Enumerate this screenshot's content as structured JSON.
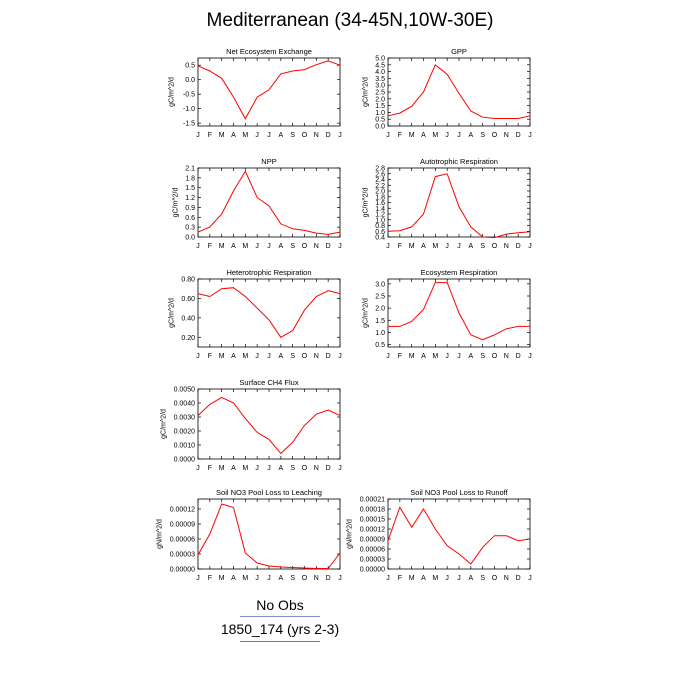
{
  "page": {
    "title": "Mediterranean (34-45N,10W-30E)"
  },
  "legend": {
    "items": [
      {
        "label": "No Obs",
        "color": "#7a8fd0"
      },
      {
        "label": "1850_174 (yrs 2-3)",
        "color": "#e05050"
      }
    ]
  },
  "colors": {
    "series": "#ff0000",
    "axis": "#000000"
  },
  "chart_data": [
    {
      "type": "line",
      "title": "Net Ecosystem Exchange",
      "ylabel": "gC/m^2/d",
      "xlabel": "",
      "categories": [
        "J",
        "F",
        "M",
        "A",
        "M",
        "J",
        "J",
        "A",
        "S",
        "O",
        "N",
        "D",
        "J"
      ],
      "ylim": [
        -1.6,
        0.75
      ],
      "yticks": [
        0.5,
        0.0,
        -0.5,
        -1.0,
        -1.5
      ],
      "yticklabels": [
        "0.5",
        "0.0",
        "-0.5",
        "-1.0",
        "-1.5"
      ],
      "series": [
        {
          "values": [
            0.48,
            0.3,
            0.05,
            -0.6,
            -1.35,
            -0.6,
            -0.35,
            0.2,
            0.3,
            0.35,
            0.52,
            0.65,
            0.5
          ]
        }
      ]
    },
    {
      "type": "line",
      "title": "GPP",
      "ylabel": "gC/m^2/d",
      "xlabel": "",
      "categories": [
        "J",
        "F",
        "M",
        "A",
        "M",
        "J",
        "J",
        "A",
        "S",
        "O",
        "N",
        "D",
        "J"
      ],
      "ylim": [
        0.0,
        5.0
      ],
      "yticks": [
        0.0,
        0.5,
        1.0,
        1.5,
        2.0,
        2.5,
        3.0,
        3.5,
        4.0,
        4.5,
        5.0
      ],
      "yticklabels": [
        "0.0",
        "0.5",
        "1.0",
        "1.5",
        "2.0",
        "2.5",
        "3.0",
        "3.5",
        "4.0",
        "4.5",
        "5.0"
      ],
      "series": [
        {
          "values": [
            0.75,
            0.95,
            1.45,
            2.5,
            4.5,
            3.8,
            2.4,
            1.1,
            0.65,
            0.55,
            0.55,
            0.55,
            0.75
          ]
        }
      ]
    },
    {
      "type": "line",
      "title": "NPP",
      "ylabel": "gC/m^2/d",
      "xlabel": "",
      "categories": [
        "J",
        "F",
        "M",
        "A",
        "M",
        "J",
        "J",
        "A",
        "S",
        "O",
        "N",
        "D",
        "J"
      ],
      "ylim": [
        0.0,
        2.1
      ],
      "yticks": [
        0.0,
        0.3,
        0.6,
        0.9,
        1.2,
        1.5,
        1.8,
        2.1
      ],
      "yticklabels": [
        "0.0",
        "0.3",
        "0.6",
        "0.9",
        "1.2",
        "1.5",
        "1.8",
        "2.1"
      ],
      "series": [
        {
          "values": [
            0.15,
            0.3,
            0.7,
            1.4,
            2.0,
            1.2,
            0.95,
            0.4,
            0.25,
            0.2,
            0.12,
            0.08,
            0.15
          ]
        }
      ]
    },
    {
      "type": "line",
      "title": "Autotrophic Respiration",
      "ylabel": "gC/m^2/d",
      "xlabel": "",
      "categories": [
        "J",
        "F",
        "M",
        "A",
        "M",
        "J",
        "J",
        "A",
        "S",
        "O",
        "N",
        "D",
        "J"
      ],
      "ylim": [
        0.4,
        2.8
      ],
      "yticks": [
        0.4,
        0.6,
        0.8,
        1.0,
        1.2,
        1.4,
        1.6,
        1.8,
        2.0,
        2.2,
        2.4,
        2.6,
        2.8
      ],
      "yticklabels": [
        "0.4",
        "0.6",
        "0.8",
        "1.0",
        "1.2",
        "1.4",
        "1.6",
        "1.8",
        "2.0",
        "2.2",
        "2.4",
        "2.6",
        "2.8"
      ],
      "series": [
        {
          "values": [
            0.6,
            0.62,
            0.75,
            1.2,
            2.5,
            2.6,
            1.45,
            0.75,
            0.4,
            0.38,
            0.5,
            0.55,
            0.58
          ]
        }
      ]
    },
    {
      "type": "line",
      "title": "Heterotrophic Respiration",
      "ylabel": "gC/m^2/d",
      "xlabel": "",
      "categories": [
        "J",
        "F",
        "M",
        "A",
        "M",
        "J",
        "J",
        "A",
        "S",
        "O",
        "N",
        "D",
        "J"
      ],
      "ylim": [
        0.1,
        0.8
      ],
      "yticks": [
        0.2,
        0.4,
        0.6,
        0.8
      ],
      "yticklabels": [
        "0.20",
        "0.40",
        "0.60",
        "0.80"
      ],
      "series": [
        {
          "values": [
            0.65,
            0.62,
            0.7,
            0.71,
            0.62,
            0.5,
            0.38,
            0.2,
            0.27,
            0.48,
            0.62,
            0.68,
            0.65
          ]
        }
      ]
    },
    {
      "type": "line",
      "title": "Ecosystem Respiration",
      "ylabel": "gC/m^2/d",
      "xlabel": "",
      "categories": [
        "J",
        "F",
        "M",
        "A",
        "M",
        "J",
        "J",
        "A",
        "S",
        "O",
        "N",
        "D",
        "J"
      ],
      "ylim": [
        0.4,
        3.2
      ],
      "yticks": [
        0.5,
        1.0,
        1.5,
        2.0,
        2.5,
        3.0
      ],
      "yticklabels": [
        "0.5",
        "1.0",
        "1.5",
        "2.0",
        "2.5",
        "3.0"
      ],
      "series": [
        {
          "values": [
            1.25,
            1.25,
            1.45,
            1.95,
            3.05,
            3.05,
            1.8,
            0.9,
            0.7,
            0.9,
            1.15,
            1.25,
            1.25
          ]
        }
      ]
    },
    {
      "type": "line",
      "title": "Surface CH4 Flux",
      "ylabel": "gC/m^2/d",
      "xlabel": "",
      "categories": [
        "J",
        "F",
        "M",
        "A",
        "M",
        "J",
        "J",
        "A",
        "S",
        "O",
        "N",
        "D",
        "J"
      ],
      "ylim": [
        0.0,
        0.005
      ],
      "yticks": [
        0.0,
        0.001,
        0.002,
        0.003,
        0.004,
        0.005
      ],
      "yticklabels": [
        "0.0000",
        "0.0010",
        "0.0020",
        "0.0030",
        "0.0040",
        "0.0050"
      ],
      "series": [
        {
          "values": [
            0.0031,
            0.0039,
            0.0044,
            0.004,
            0.0029,
            0.0019,
            0.0014,
            0.0004,
            0.0012,
            0.0024,
            0.0032,
            0.0035,
            0.0031
          ]
        }
      ]
    },
    {
      "type": "line",
      "title": "Soil NO3 Pool Loss to Leaching",
      "ylabel": "gN/m^2/d",
      "xlabel": "",
      "categories": [
        "J",
        "F",
        "M",
        "A",
        "M",
        "J",
        "J",
        "A",
        "S",
        "O",
        "N",
        "D",
        "J"
      ],
      "ylim": [
        0.0,
        0.00014
      ],
      "yticks": [
        0.0,
        3e-05,
        6e-05,
        9e-05,
        0.00012
      ],
      "yticklabels": [
        "0.00000",
        "0.00003",
        "0.00006",
        "0.00009",
        "0.00012"
      ],
      "series": [
        {
          "values": [
            2.8e-05,
            7e-05,
            0.00013,
            0.000123,
            3.2e-05,
            1.2e-05,
            6e-06,
            4e-06,
            3e-06,
            2e-06,
            1e-06,
            1e-06,
            3.2e-05
          ]
        }
      ]
    },
    {
      "type": "line",
      "title": "Soil NO3 Pool Loss to Runoff",
      "ylabel": "gN/m^2/d",
      "xlabel": "",
      "categories": [
        "J",
        "F",
        "M",
        "A",
        "M",
        "J",
        "J",
        "A",
        "S",
        "O",
        "N",
        "D",
        "J"
      ],
      "ylim": [
        0.0,
        0.00021
      ],
      "yticks": [
        0.0,
        3e-05,
        6e-05,
        9e-05,
        0.00012,
        0.00015,
        0.00018,
        0.00021
      ],
      "yticklabels": [
        "0.00000",
        "0.00003",
        "0.00006",
        "0.00009",
        "0.00012",
        "0.00015",
        "0.00018",
        "0.00021"
      ],
      "series": [
        {
          "values": [
            8.5e-05,
            0.000185,
            0.000125,
            0.00018,
            0.00012,
            7e-05,
            4.5e-05,
            1.5e-05,
            6.5e-05,
            0.0001,
            0.0001,
            8.5e-05,
            9e-05
          ]
        }
      ]
    }
  ]
}
